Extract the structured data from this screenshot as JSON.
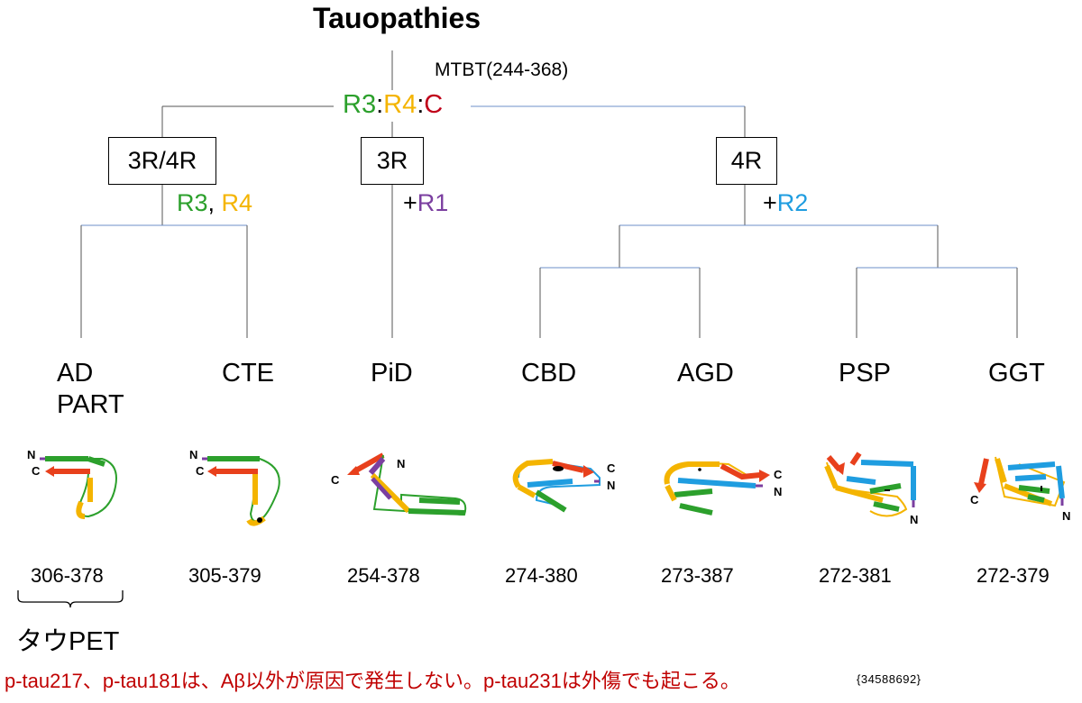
{
  "title": "Tauopathies",
  "mtbt": "MTBT(244-368)",
  "root": {
    "r3": "R3",
    "sep1": ":",
    "r4": "R4",
    "sep2": ":",
    "c": "C"
  },
  "groups": {
    "g34": {
      "box": "3R/4R",
      "r3": "R3",
      "comma": ",",
      "r4": "R4"
    },
    "g3": {
      "box": "3R",
      "plus": "+",
      "r1": "R1"
    },
    "g4": {
      "box": "4R",
      "plus": "+",
      "r2": "R2"
    }
  },
  "diseases": {
    "ad": "AD",
    "part": "PART",
    "cte": "CTE",
    "pid": "PiD",
    "cbd": "CBD",
    "agd": "AGD",
    "psp": "PSP",
    "ggt": "GGT"
  },
  "ranges": {
    "ad": "306-378",
    "cte": "305-379",
    "pid": "254-378",
    "cbd": "274-380",
    "agd": "273-387",
    "psp": "272-381",
    "ggt": "272-379"
  },
  "terminus": {
    "n": "N",
    "c": "C"
  },
  "pet": "タウPET",
  "footnote": "p-tau217、p-tau181は、Aβ以外が原因で発生しない。p-tau231は外傷でも起こる。",
  "reference": "{34588692}",
  "colors": {
    "r3": "#2ca02c",
    "r4": "#f4b400",
    "c_term": "#c0001a",
    "r1": "#7b3fa0",
    "r2": "#1f9de0",
    "strand_red": "#e8401c",
    "tree_line": "#555555",
    "tree_line_blue": "#6d8fc9",
    "footnote": "#c00000"
  }
}
